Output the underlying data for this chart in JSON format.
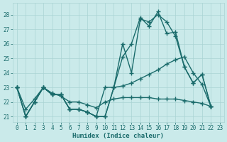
{
  "xlabel": "Humidex (Indice chaleur)",
  "ylabel": "",
  "xlim": [
    -0.5,
    23.5
  ],
  "ylim": [
    20.6,
    28.8
  ],
  "yticks": [
    21,
    22,
    23,
    24,
    25,
    26,
    27,
    28
  ],
  "xticks": [
    0,
    1,
    2,
    3,
    4,
    5,
    6,
    7,
    8,
    9,
    10,
    11,
    12,
    13,
    14,
    15,
    16,
    17,
    18,
    19,
    20,
    21,
    22,
    23
  ],
  "bg_color": "#caeaea",
  "grid_color": "#aad4d4",
  "line_color": "#1a6b6b",
  "line_width": 1.0,
  "marker": "+",
  "marker_size": 4,
  "lines": [
    {
      "x": [
        0,
        1,
        2,
        3,
        4,
        5,
        6,
        7,
        8,
        9,
        10,
        11,
        12,
        13,
        14,
        15,
        16,
        17,
        18,
        19,
        20,
        21,
        22
      ],
      "y": [
        23,
        21,
        22,
        23,
        22.5,
        22.5,
        21.5,
        21.5,
        21.3,
        21,
        23,
        23,
        26,
        24,
        27.7,
        27.5,
        28.0,
        27.5,
        26.5,
        24.4,
        23.3,
        23.9,
        21.7
      ]
    },
    {
      "x": [
        0,
        1,
        2,
        3,
        4,
        5,
        6,
        7,
        8,
        9,
        10,
        11,
        12,
        13,
        14,
        15,
        16,
        17,
        18,
        19,
        20,
        21,
        22
      ],
      "y": [
        23,
        21,
        22,
        23,
        22.5,
        22.5,
        21.5,
        21.5,
        21.3,
        21,
        21,
        23.0,
        23.1,
        23.3,
        23.6,
        23.9,
        24.2,
        24.6,
        24.9,
        25.1,
        24.0,
        23.2,
        21.7
      ]
    },
    {
      "x": [
        0,
        1,
        2,
        3,
        4,
        5,
        6,
        7,
        8,
        9,
        10,
        11,
        12,
        13,
        14,
        15,
        16,
        17,
        18,
        19,
        20,
        21,
        22
      ],
      "y": [
        23,
        21.5,
        22.2,
        23.0,
        22.6,
        22.4,
        22.0,
        22.0,
        21.8,
        21.6,
        22.0,
        22.2,
        22.3,
        22.3,
        22.3,
        22.3,
        22.2,
        22.2,
        22.2,
        22.1,
        22.0,
        21.9,
        21.7
      ]
    },
    {
      "x": [
        0,
        1,
        2,
        3,
        4,
        5,
        6,
        7,
        8,
        9,
        10,
        11,
        12,
        13,
        14,
        15,
        16,
        17,
        18,
        19,
        20,
        21,
        22
      ],
      "y": [
        23,
        21,
        22,
        23,
        22.5,
        22.5,
        21.5,
        21.5,
        21.3,
        21,
        21,
        23.0,
        25.1,
        26.0,
        27.8,
        27.2,
        28.2,
        26.7,
        26.8,
        24.4,
        23.3,
        23.9,
        21.7
      ]
    }
  ]
}
